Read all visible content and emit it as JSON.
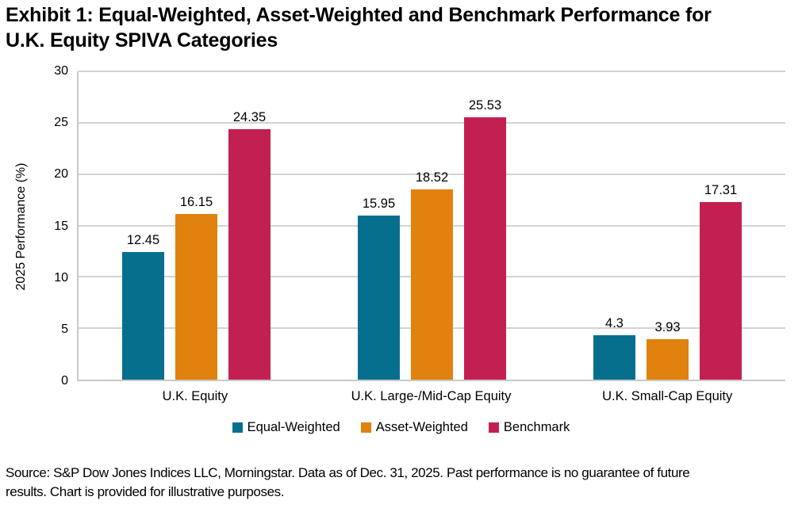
{
  "header": {
    "title_line1": "Exhibit 1: Equal-Weighted, Asset-Weighted and Benchmark Performance for",
    "title_line2": "U.K. Equity SPIVA Categories"
  },
  "chart_data": {
    "type": "bar",
    "title": "Exhibit 1: Equal-Weighted, Asset-Weighted and Benchmark Performance for U.K. Equity SPIVA Categories",
    "categories": [
      "U.K. Equity",
      "U.K. Large-/Mid-Cap Equity",
      "U.K. Small-Cap Equity"
    ],
    "series": [
      {
        "name": "Equal-Weighted",
        "color": "#076f8e",
        "values": [
          12.45,
          15.95,
          4.3
        ]
      },
      {
        "name": "Asset-Weighted",
        "color": "#e0820d",
        "values": [
          16.15,
          18.52,
          3.93
        ]
      },
      {
        "name": "Benchmark",
        "color": "#c32052",
        "values": [
          24.35,
          25.53,
          17.31
        ]
      }
    ],
    "data_labels": [
      [
        "12.45",
        "15.95",
        "4.3"
      ],
      [
        "16.15",
        "18.52",
        "3.93"
      ],
      [
        "24.35",
        "25.53",
        "17.31"
      ]
    ],
    "xlabel": "",
    "ylabel": "2025 Performance (%)",
    "ylim": [
      0,
      30
    ],
    "yticks": [
      0,
      5,
      10,
      15,
      20,
      25,
      30
    ],
    "grid": true,
    "legend_position": "bottom"
  },
  "colors": {
    "gridline": "#d2d2d2",
    "axis_line": "#c9c9c9",
    "text": "#000000",
    "background": "#ffffff"
  },
  "footer": {
    "line1": "Source: S&P Dow Jones Indices LLC, Morningstar. Data as of Dec. 31, 2025. Past performance is no guarantee of future",
    "line2": "results. Chart is provided for illustrative purposes."
  }
}
